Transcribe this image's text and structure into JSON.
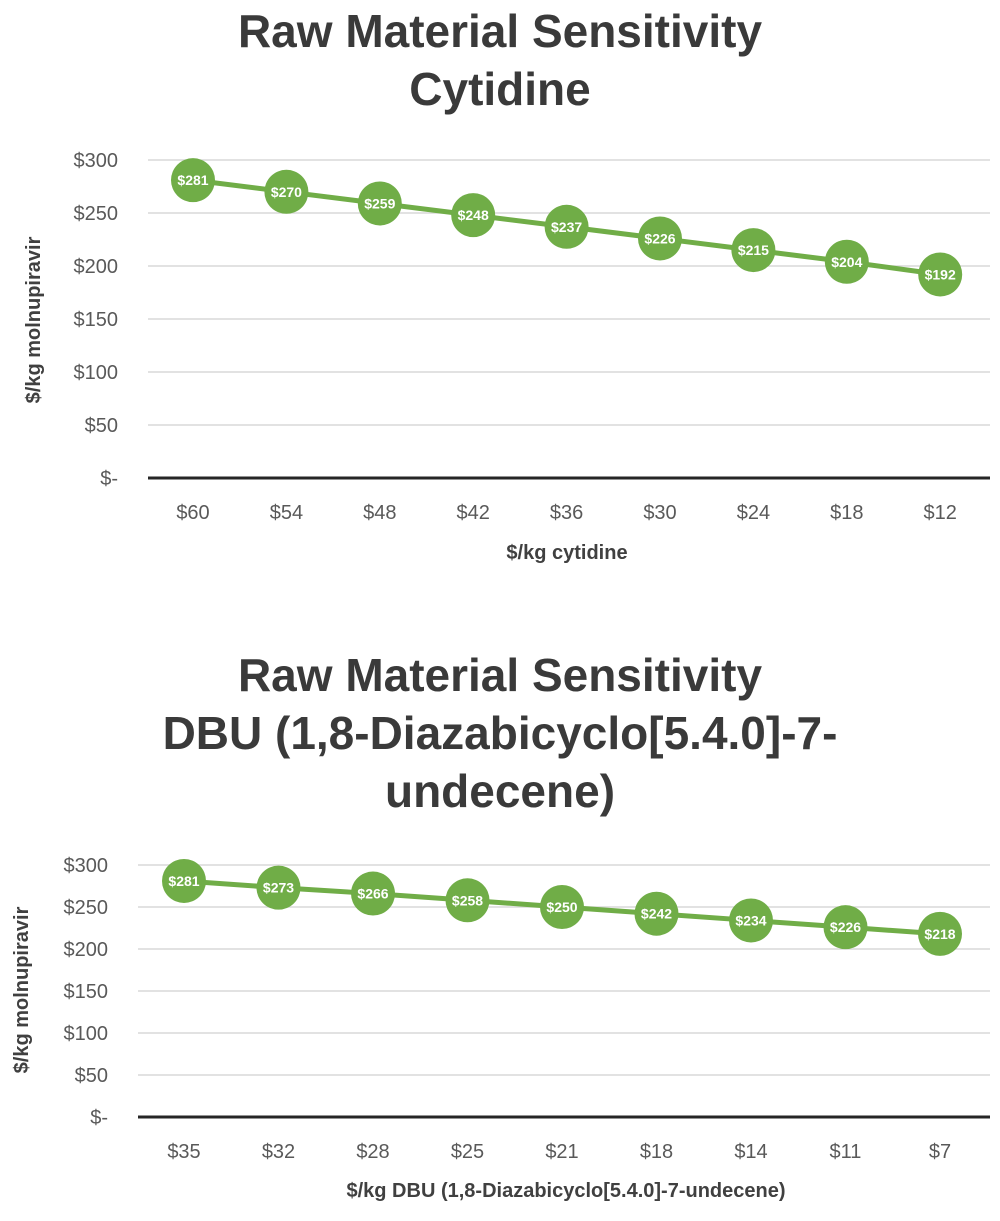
{
  "chart_data": [
    {
      "type": "line",
      "title": "Raw Material Sensitivity\nCytidine",
      "title_lines": [
        "Raw Material Sensitivity",
        "Cytidine"
      ],
      "xlabel": "$/kg cytidine",
      "ylabel": "$/kg molnupiravir",
      "categories": [
        "$60",
        "$54",
        "$48",
        "$42",
        "$36",
        "$30",
        "$24",
        "$18",
        "$12"
      ],
      "values": [
        281,
        270,
        259,
        248,
        237,
        226,
        215,
        204,
        192
      ],
      "data_labels": [
        "$281",
        "$270",
        "$259",
        "$248",
        "$237",
        "$226",
        "$215",
        "$204",
        "$192"
      ],
      "y_ticks": [
        0,
        50,
        100,
        150,
        200,
        250,
        300
      ],
      "y_tick_labels": [
        "$-",
        "$50",
        "$100",
        "$150",
        "$200",
        "$250",
        "$300"
      ],
      "ylim": [
        0,
        300
      ],
      "grid": true,
      "legend": "none",
      "color": "#70AD47"
    },
    {
      "type": "line",
      "title": "Raw Material Sensitivity\nDBU (1,8-Diazabicyclo[5.4.0]-7-\nundecene)",
      "title_lines": [
        "Raw Material Sensitivity",
        "DBU (1,8-Diazabicyclo[5.4.0]-7-",
        "undecene)"
      ],
      "xlabel": "$/kg DBU (1,8-Diazabicyclo[5.4.0]-7-undecene)",
      "ylabel": "$/kg molnupiravir",
      "categories": [
        "$35",
        "$32",
        "$28",
        "$25",
        "$21",
        "$18",
        "$14",
        "$11",
        "$7"
      ],
      "values": [
        281,
        273,
        266,
        258,
        250,
        242,
        234,
        226,
        218
      ],
      "data_labels": [
        "$281",
        "$273",
        "$266",
        "$258",
        "$250",
        "$242",
        "$234",
        "$226",
        "$218"
      ],
      "y_ticks": [
        0,
        50,
        100,
        150,
        200,
        250,
        300
      ],
      "y_tick_labels": [
        "$-",
        "$50",
        "$100",
        "$150",
        "$200",
        "$250",
        "$300"
      ],
      "ylim": [
        0,
        300
      ],
      "grid": true,
      "legend": "none",
      "color": "#70AD47"
    }
  ]
}
